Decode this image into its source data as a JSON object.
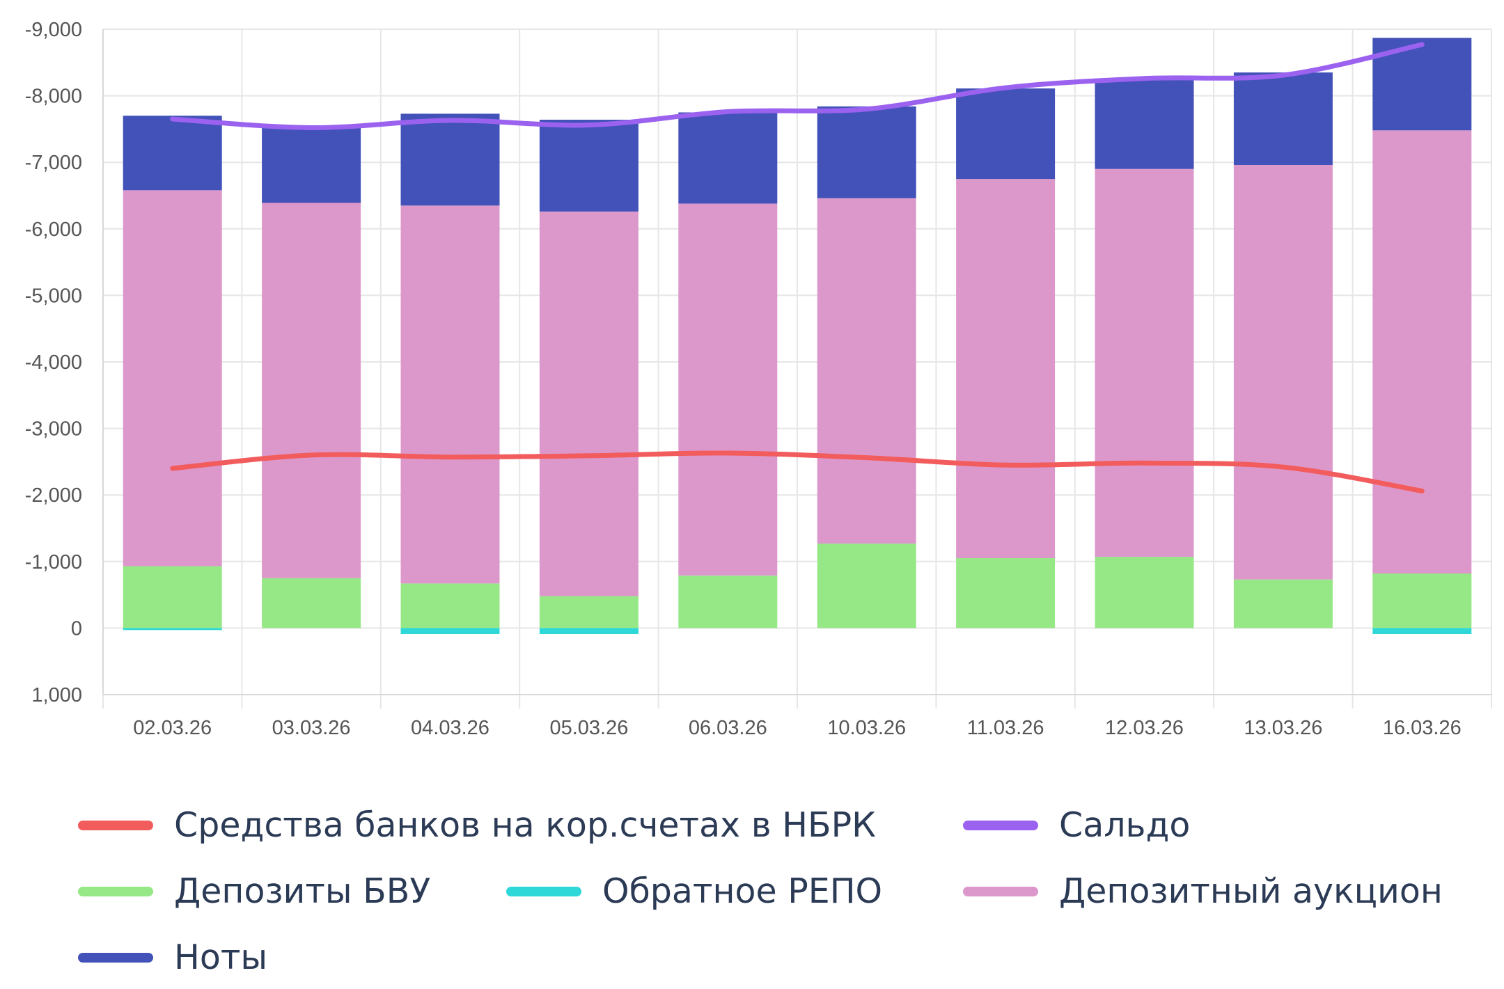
{
  "chart_data": {
    "type": "bar",
    "stacked": true,
    "categories": [
      "02.03.26",
      "03.03.26",
      "04.03.26",
      "05.03.26",
      "06.03.26",
      "10.03.26",
      "11.03.26",
      "12.03.26",
      "13.03.26",
      "16.03.26"
    ],
    "y_ticks": [
      "-9,000",
      "-8,000",
      "-7,000",
      "-6,000",
      "-5,000",
      "-4,000",
      "-3,000",
      "-2,000",
      "-1,000",
      "0",
      "1,000"
    ],
    "ylim": [
      1000,
      -9000
    ],
    "y_inverted": true,
    "grid": true,
    "legend_position": "bottom",
    "series": [
      {
        "name": "Депозиты БВУ",
        "kind": "bar",
        "color": "#96e887",
        "values": [
          -930,
          -750,
          -670,
          -480,
          -790,
          -1270,
          -1050,
          -1070,
          -730,
          -820
        ]
      },
      {
        "name": "Депозитный аукцион",
        "kind": "bar",
        "color": "#dd98cb",
        "values": [
          -5650,
          -5640,
          -5680,
          -5780,
          -5590,
          -5190,
          -5700,
          -5830,
          -6230,
          -6660
        ]
      },
      {
        "name": "Ноты",
        "kind": "bar",
        "color": "#4252b8",
        "values": [
          -1120,
          -1150,
          -1380,
          -1380,
          -1370,
          -1380,
          -1360,
          -1360,
          -1390,
          -1390
        ]
      },
      {
        "name": "Обратное РЕПО",
        "kind": "bar",
        "color": "#2fd8d8",
        "values": [
          30,
          0,
          90,
          90,
          0,
          0,
          0,
          0,
          0,
          90
        ]
      },
      {
        "name": "Средства банков на кор.счетах в НБРК",
        "kind": "line",
        "color": "#f25c5c",
        "values": [
          -2400,
          -2600,
          -2570,
          -2590,
          -2630,
          -2560,
          -2450,
          -2480,
          -2420,
          -2060
        ]
      },
      {
        "name": "Сальдо",
        "kind": "line",
        "color": "#9b62ef",
        "values": [
          -7650,
          -7520,
          -7630,
          -7560,
          -7760,
          -7800,
          -8120,
          -8260,
          -8310,
          -8770
        ]
      }
    ]
  },
  "legend": [
    {
      "label": "Средства банков на кор.счетах в НБРК",
      "color": "#f25c5c"
    },
    {
      "label": "Сальдо",
      "color": "#9b62ef"
    },
    {
      "label": "Депозиты БВУ",
      "color": "#96e887"
    },
    {
      "label": "Обратное РЕПО",
      "color": "#2fd8d8"
    },
    {
      "label": "Депозитный аукцион",
      "color": "#dd98cb"
    },
    {
      "label": "Ноты",
      "color": "#4252b8"
    }
  ]
}
